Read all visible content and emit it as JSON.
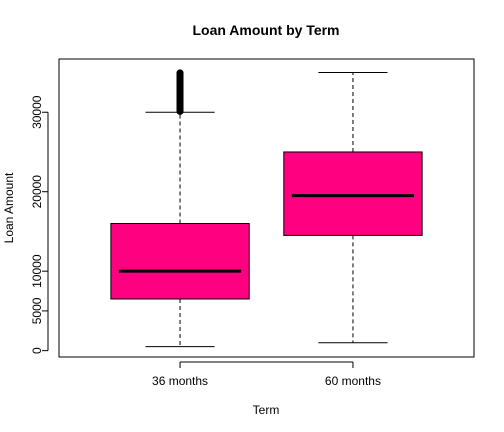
{
  "chart_data": {
    "type": "boxplot",
    "title": "Loan Amount by Term",
    "xlabel": "Term",
    "ylabel": "Loan Amount",
    "categories": [
      "36 months",
      "60 months"
    ],
    "y_ticks": [
      0,
      5000,
      10000,
      20000,
      30000
    ],
    "ylim": [
      -800,
      36700
    ],
    "box_color": "#FF0080",
    "outlier_range_36": [
      30000,
      35000
    ],
    "boxes": [
      {
        "category": "36 months",
        "whisker_low": 500,
        "q1": 6500,
        "median": 10000,
        "q3": 16000,
        "whisker_high": 30000,
        "outliers": [
          30100,
          30400,
          30800,
          31200,
          31600,
          32000,
          32400,
          32800,
          33200,
          33600,
          34000,
          34400,
          34800,
          35000
        ]
      },
      {
        "category": "60 months",
        "whisker_low": 1000,
        "q1": 14500,
        "median": 19500,
        "q3": 25000,
        "whisker_high": 35000,
        "outliers": []
      }
    ]
  }
}
